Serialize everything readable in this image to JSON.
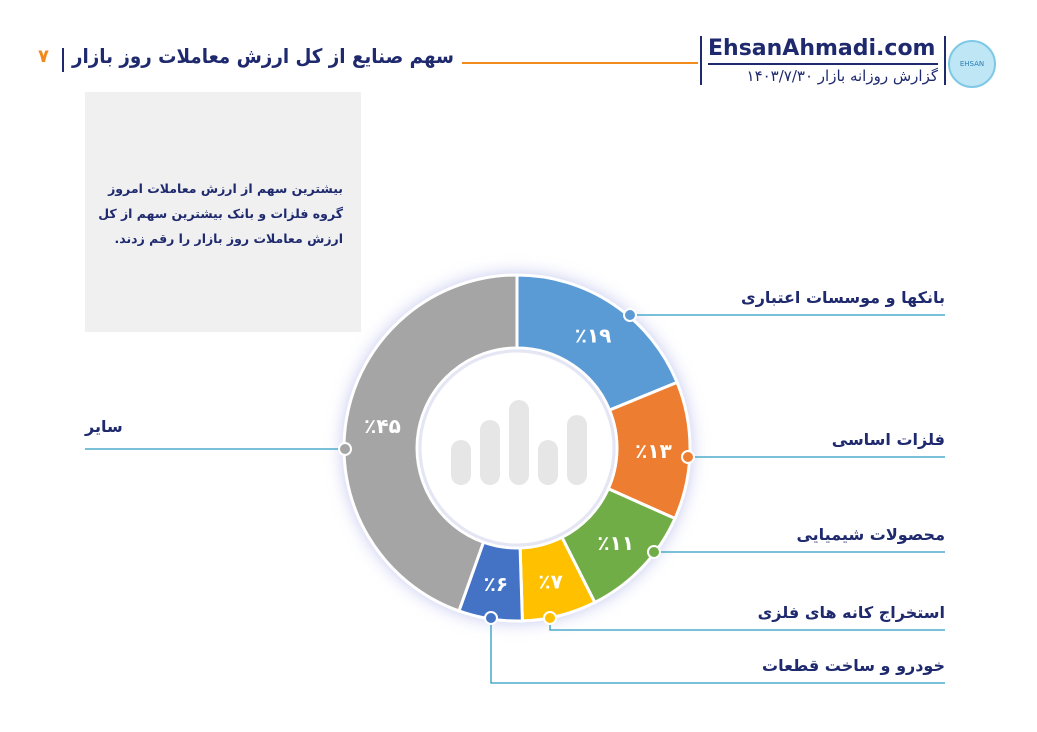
{
  "header": {
    "title": "سهم صنایع از کل ارزش معاملات روز بازار",
    "page_number": "۷",
    "site": "EhsanAhmadi.com",
    "subtitle": "گزارش روزانه بازار ۱۴۰۳/۷/۳۰",
    "logo_text": "EHSAN"
  },
  "note": "بیشترین سهم از ارزش معاملات امروز گروه فلزات و بانک بیشترین سهم از کل ارزش معاملات روز بازار را رقم زدند.",
  "chart_data": {
    "type": "pie",
    "title": "سهم صنایع از کل ارزش معاملات روز بازار",
    "categories": [
      "بانکها و موسسات اعتباری",
      "فلزات اساسی",
      "محصولات شیمیایی",
      "استخراج کانه های فلزی",
      "خودرو و ساخت قطعات",
      "سایر"
    ],
    "values": [
      19,
      13,
      11,
      7,
      6,
      45
    ],
    "labels": [
      "٪۱۹",
      "٪۱۳",
      "٪۱۱",
      "٪۷",
      "٪۶",
      "٪۴۵"
    ],
    "colors": [
      "#5b9bd5",
      "#ed7d31",
      "#70ad47",
      "#ffc000",
      "#4472c4",
      "#a5a5a5"
    ],
    "donut": true
  }
}
